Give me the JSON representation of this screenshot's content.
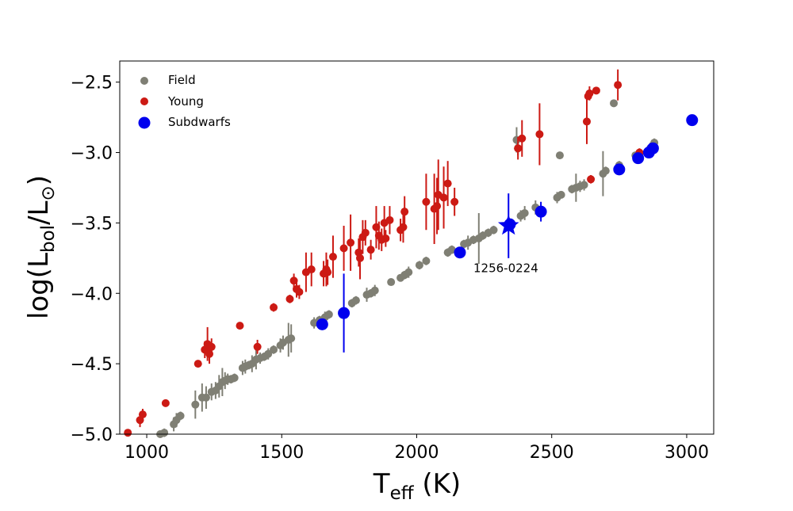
{
  "chart_data": {
    "type": "scatter",
    "title": "",
    "xlabel": {
      "main": "T",
      "sub": "eff",
      "unit": " (K)"
    },
    "ylabel": {
      "prefix": "log(L",
      "sub": "bol",
      "mid": "/L",
      "symbol": "⊙",
      "suffix": ")"
    },
    "xlim": [
      900,
      3100
    ],
    "ylim": [
      -5.0,
      -2.35
    ],
    "xticks": [
      1000,
      1500,
      2000,
      2500,
      3000
    ],
    "xtick_labels": [
      "1000",
      "1500",
      "2000",
      "2500",
      "3000"
    ],
    "yticks": [
      -5.0,
      -4.5,
      -4.0,
      -3.5,
      -3.0,
      -2.5
    ],
    "ytick_labels": [
      "−5.0",
      "−4.5",
      "−4.0",
      "−3.5",
      "−3.0",
      "−2.5"
    ],
    "legend_position": "top-left",
    "grid": false,
    "colors": {
      "Field": "#7f7f74",
      "Young": "#cc1a14",
      "Subdwarfs": "#0000ee"
    },
    "series": [
      {
        "name": "Field",
        "marker": "circle",
        "points": [
          [
            1050,
            -5.0,
            0.02
          ],
          [
            1065,
            -4.99,
            0.03
          ],
          [
            1100,
            -4.93,
            0.05
          ],
          [
            1110,
            -4.9,
            0.05
          ],
          [
            1125,
            -4.87,
            0.03
          ],
          [
            1180,
            -4.79,
            0.1
          ],
          [
            1205,
            -4.74,
            0.1
          ],
          [
            1220,
            -4.74,
            0.08
          ],
          [
            1240,
            -4.7,
            0.06
          ],
          [
            1255,
            -4.69,
            0.06
          ],
          [
            1268,
            -4.66,
            0.08
          ],
          [
            1280,
            -4.63,
            0.1
          ],
          [
            1290,
            -4.62,
            0.06
          ],
          [
            1300,
            -4.61,
            0.04
          ],
          [
            1312,
            -4.61,
            0.03
          ],
          [
            1325,
            -4.6,
            0.03
          ],
          [
            1355,
            -4.53,
            0.05
          ],
          [
            1365,
            -4.52,
            0.05
          ],
          [
            1378,
            -4.51,
            0.03
          ],
          [
            1390,
            -4.5,
            0.06
          ],
          [
            1405,
            -4.47,
            0.07
          ],
          [
            1420,
            -4.46,
            0.04
          ],
          [
            1435,
            -4.45,
            0.03
          ],
          [
            1450,
            -4.43,
            0.04
          ],
          [
            1470,
            -4.4,
            0.03
          ],
          [
            1495,
            -4.37,
            0.05
          ],
          [
            1505,
            -4.35,
            0.05
          ],
          [
            1525,
            -4.33,
            0.12
          ],
          [
            1535,
            -4.32,
            0.1
          ],
          [
            1620,
            -4.21,
            0.04
          ],
          [
            1640,
            -4.19,
            0.03
          ],
          [
            1660,
            -4.17,
            0.04
          ],
          [
            1675,
            -4.15,
            0.03
          ],
          [
            1760,
            -4.07,
            0.03
          ],
          [
            1775,
            -4.05,
            0.03
          ],
          [
            1815,
            -4.01,
            0.05
          ],
          [
            1830,
            -4.0,
            0.03
          ],
          [
            1845,
            -3.98,
            0.04
          ],
          [
            1905,
            -3.92,
            0.02
          ],
          [
            1940,
            -3.89,
            0.02
          ],
          [
            1955,
            -3.87,
            0.03
          ],
          [
            1970,
            -3.85,
            0.04
          ],
          [
            2010,
            -3.8,
            0.03
          ],
          [
            2035,
            -3.77,
            0.03
          ],
          [
            2115,
            -3.71,
            0.03
          ],
          [
            2130,
            -3.69,
            0.03
          ],
          [
            2175,
            -3.65,
            0.03
          ],
          [
            2190,
            -3.64,
            0.05
          ],
          [
            2210,
            -3.62,
            0.03
          ],
          [
            2230,
            -3.61,
            0.18
          ],
          [
            2245,
            -3.59,
            0.03
          ],
          [
            2265,
            -3.57,
            0.03
          ],
          [
            2285,
            -3.55,
            0.03
          ],
          [
            2370,
            -2.91,
            0.09
          ],
          [
            2375,
            -2.97,
            0.05
          ],
          [
            2385,
            -3.45,
            0.04
          ],
          [
            2400,
            -3.43,
            0.05
          ],
          [
            2440,
            -3.39,
            0.05
          ],
          [
            2520,
            -3.32,
            0.04
          ],
          [
            2530,
            -3.02,
            0.02
          ],
          [
            2535,
            -3.3,
            0.02
          ],
          [
            2575,
            -3.26,
            0.03
          ],
          [
            2590,
            -3.25,
            0.1
          ],
          [
            2605,
            -3.24,
            0.04
          ],
          [
            2620,
            -3.23,
            0.04
          ],
          [
            2690,
            -3.15,
            0.16
          ],
          [
            2700,
            -3.13,
            0.03
          ],
          [
            2730,
            -2.65,
            0.02
          ],
          [
            2750,
            -3.09,
            0.03
          ],
          [
            2810,
            -3.02,
            0.02
          ],
          [
            2825,
            -3.01,
            0.03
          ],
          [
            2865,
            -2.97,
            0.04
          ],
          [
            2880,
            -2.93,
            0.03
          ]
        ]
      },
      {
        "name": "Young",
        "marker": "circle",
        "points": [
          [
            930,
            -4.99,
            0.02
          ],
          [
            975,
            -4.9,
            0.05
          ],
          [
            985,
            -4.86,
            0.04
          ],
          [
            1070,
            -4.78,
            0.02
          ],
          [
            1190,
            -4.5,
            0.02
          ],
          [
            1215,
            -4.4,
            0.06
          ],
          [
            1225,
            -4.36,
            0.12
          ],
          [
            1232,
            -4.43,
            0.07
          ],
          [
            1240,
            -4.38,
            0.06
          ],
          [
            1345,
            -4.23,
            0.02
          ],
          [
            1410,
            -4.38,
            0.05
          ],
          [
            1470,
            -4.1,
            0.03
          ],
          [
            1530,
            -4.04,
            0.03
          ],
          [
            1545,
            -3.91,
            0.05
          ],
          [
            1555,
            -3.97,
            0.06
          ],
          [
            1565,
            -3.99,
            0.05
          ],
          [
            1590,
            -3.85,
            0.14
          ],
          [
            1610,
            -3.83,
            0.12
          ],
          [
            1655,
            -3.86,
            0.09
          ],
          [
            1665,
            -3.83,
            0.12
          ],
          [
            1670,
            -3.85,
            0.09
          ],
          [
            1690,
            -3.74,
            0.15
          ],
          [
            1730,
            -3.68,
            0.16
          ],
          [
            1755,
            -3.64,
            0.2
          ],
          [
            1785,
            -3.71,
            0.1
          ],
          [
            1790,
            -3.75,
            0.15
          ],
          [
            1800,
            -3.6,
            0.12
          ],
          [
            1810,
            -3.57,
            0.09
          ],
          [
            1830,
            -3.69,
            0.07
          ],
          [
            1850,
            -3.53,
            0.15
          ],
          [
            1860,
            -3.59,
            0.1
          ],
          [
            1870,
            -3.62,
            0.08
          ],
          [
            1880,
            -3.5,
            0.12
          ],
          [
            1885,
            -3.61,
            0.06
          ],
          [
            1900,
            -3.48,
            0.1
          ],
          [
            1940,
            -3.55,
            0.08
          ],
          [
            1950,
            -3.53,
            0.11
          ],
          [
            1955,
            -3.42,
            0.11
          ],
          [
            2035,
            -3.35,
            0.2
          ],
          [
            2065,
            -3.4,
            0.25
          ],
          [
            2075,
            -3.38,
            0.2
          ],
          [
            2080,
            -3.3,
            0.25
          ],
          [
            2100,
            -3.32,
            0.22
          ],
          [
            2115,
            -3.22,
            0.16
          ],
          [
            2140,
            -3.35,
            0.1
          ],
          [
            2375,
            -2.97,
            0.08
          ],
          [
            2390,
            -2.9,
            0.13
          ],
          [
            2455,
            -2.87,
            0.22
          ],
          [
            2630,
            -2.78,
            0.16
          ],
          [
            2635,
            -2.6,
            0.02
          ],
          [
            2640,
            -2.58,
            0.05
          ],
          [
            2645,
            -3.19,
            0.03
          ],
          [
            2665,
            -2.56,
            0.02
          ],
          [
            2745,
            -2.52,
            0.11
          ],
          [
            2825,
            -3.0,
            0.03
          ]
        ]
      },
      {
        "name": "Subdwarfs",
        "marker": "circle",
        "points": [
          [
            1650,
            -4.22,
            0.02
          ],
          [
            1730,
            -4.14,
            0.28
          ],
          [
            2160,
            -3.71,
            0.02
          ],
          [
            2345,
            -3.51,
            0.02
          ],
          [
            2460,
            -3.42,
            0.07
          ],
          [
            2750,
            -3.12,
            0.02
          ],
          [
            2820,
            -3.04,
            0.02
          ],
          [
            2860,
            -3.0,
            0.02
          ],
          [
            2875,
            -2.97,
            0.02
          ],
          [
            3020,
            -2.77,
            0.04
          ]
        ]
      },
      {
        "name": "1256-0224",
        "marker": "star",
        "points": [
          [
            2340,
            -3.52,
            0.23
          ]
        ]
      }
    ],
    "annotations": [
      {
        "text": "1256-0224",
        "x": 2210,
        "y": -3.82
      }
    ]
  }
}
